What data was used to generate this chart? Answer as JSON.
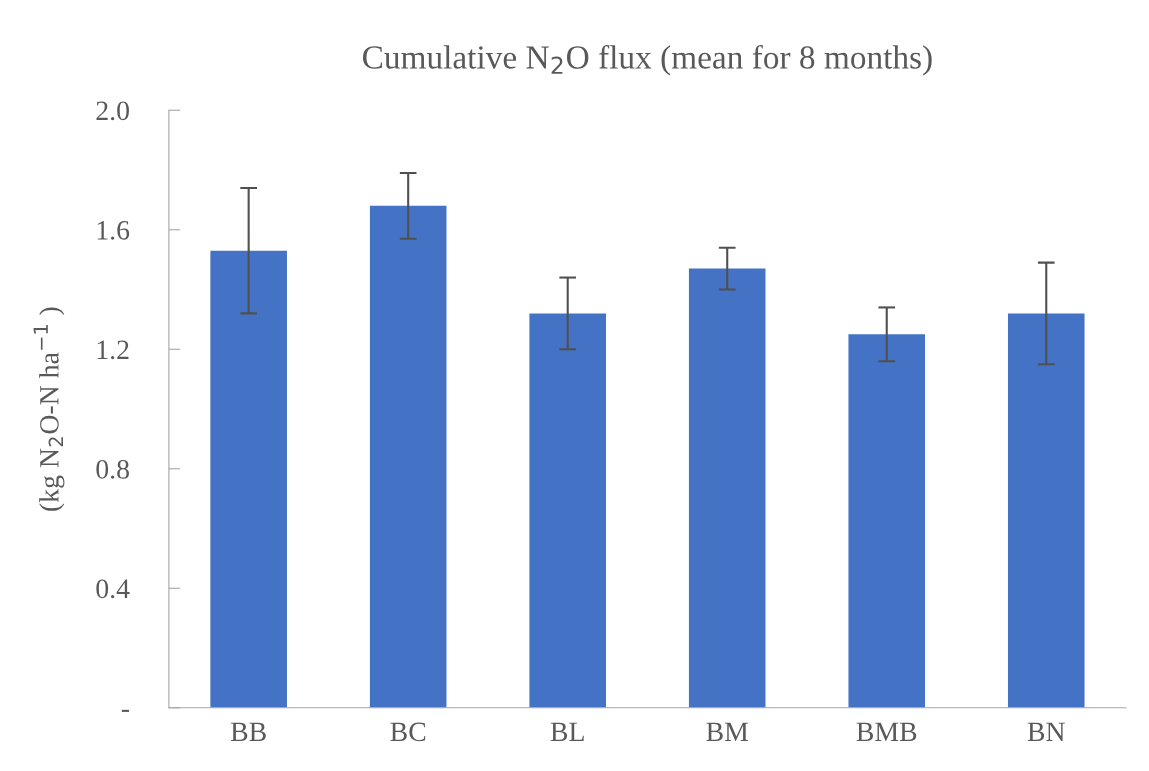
{
  "chart_data": {
    "type": "bar",
    "title": "Cumulative N$_{2}$O flux (mean for 8 months)",
    "ylabel": "(kg N$_{2}$O-N ha$^{−1}$ )",
    "categories": [
      "BB",
      "BC",
      "BL",
      "BM",
      "BMB",
      "BN"
    ],
    "values": [
      1.53,
      1.68,
      1.32,
      1.47,
      1.25,
      1.32
    ],
    "errors": [
      0.21,
      0.11,
      0.12,
      0.07,
      0.09,
      0.17
    ],
    "color": "#4472c4",
    "ylim": [
      0,
      2.0
    ],
    "yticks": [
      {
        "value": 0,
        "label": "-"
      },
      {
        "value": 0.4,
        "label": "0.4"
      },
      {
        "value": 0.8,
        "label": "0.8"
      },
      {
        "value": 1.2,
        "label": "1.2"
      },
      {
        "value": 1.6,
        "label": "1.6"
      },
      {
        "value": 2.0,
        "label": "2.0"
      }
    ],
    "grid": false,
    "legend": false
  }
}
